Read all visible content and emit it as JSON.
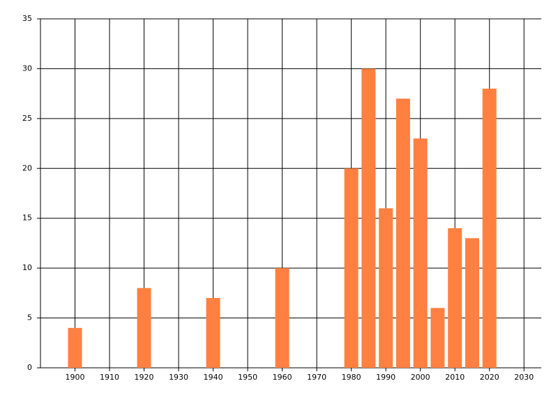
{
  "chart_data": {
    "type": "bar",
    "x": [
      1900,
      1920,
      1940,
      1960,
      1980,
      1985,
      1990,
      1995,
      2000,
      2005,
      2010,
      2015,
      2020
    ],
    "values": [
      4,
      8,
      7,
      10,
      20,
      30,
      16,
      27,
      23,
      6,
      14,
      13,
      28
    ],
    "color": "#ff8040",
    "xlim": [
      1890,
      2035
    ],
    "xticks": [
      1900,
      1910,
      1920,
      1930,
      1940,
      1950,
      1960,
      1970,
      1980,
      1990,
      2000,
      2010,
      2020,
      2030
    ],
    "ylim": [
      0,
      35
    ],
    "yticks": [
      0,
      5,
      10,
      15,
      20,
      25,
      30,
      35
    ],
    "grid": true
  }
}
